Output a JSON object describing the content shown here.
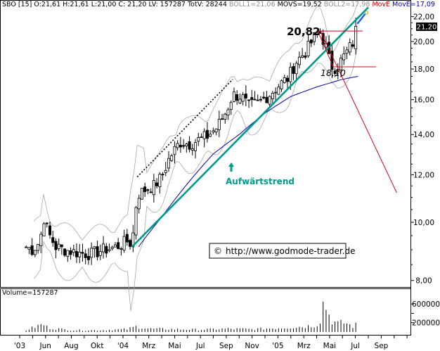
{
  "header": {
    "symbol": "SBO [15]",
    "ohlc": "O:21,61 H:21,61 L:21,00 C: 21,20 LV: 157287 TotV: 28244",
    "boll1": "BOLL1=21,06",
    "movs": "MOVS=19,52",
    "boll2": "BOLL2=17,98",
    "move1": "MovE",
    "move2": "MovE=17,09"
  },
  "annotations": {
    "high_label": "20,82",
    "low_label": "18,10",
    "trend_label": "Aufwärtstrend",
    "last_price": "21,20",
    "watermark": "http://www.godmode-trader.de",
    "copyright": "©"
  },
  "volume_label": "Volume=157287",
  "colors": {
    "trend": "#009a8c",
    "ma_blue": "#0000aa",
    "boll_grey": "#a8a8a8",
    "red_lines": "#e0001e",
    "arrow_blue": "#1a5cff",
    "header_red": "#d40000",
    "header_blue": "#0000cc",
    "header_grey": "#909090"
  },
  "chart_data": {
    "type": "candlestick",
    "title": "SBO [15]",
    "price_axis": {
      "ticks": [
        8,
        10,
        12,
        14,
        16,
        18,
        20,
        22
      ],
      "tick_labels": [
        "8,00",
        "10,00",
        "12,00",
        "14,00",
        "16,00",
        "18,00",
        "20,00",
        "22,00"
      ],
      "scale": "log"
    },
    "volume_axis": {
      "ticks": [
        200000,
        400000,
        600000
      ],
      "tick_labels": [
        "200000",
        "400000",
        "600000"
      ]
    },
    "x_labels": [
      "'03",
      "Jun",
      "Aug",
      "Okt",
      "'04",
      "Mrz",
      "Mai",
      "Jul",
      "Sep",
      "Nov",
      "'05",
      "Mrz",
      "Mai",
      "Jul",
      "Sep"
    ],
    "x_label_months": [
      0,
      2,
      4,
      6,
      8,
      10,
      12,
      14,
      16,
      18,
      20,
      22,
      24,
      26,
      28
    ],
    "close_keypoints": [
      [
        0.5,
        9.1
      ],
      [
        1.0,
        9.0
      ],
      [
        1.6,
        9.3
      ],
      [
        1.8,
        10.3
      ],
      [
        2.2,
        9.6
      ],
      [
        2.8,
        9.1
      ],
      [
        3.5,
        9.0
      ],
      [
        4.5,
        8.9
      ],
      [
        5.5,
        8.85
      ],
      [
        6.5,
        9.0
      ],
      [
        7.5,
        9.1
      ],
      [
        8.3,
        9.3
      ],
      [
        8.7,
        9.2
      ],
      [
        9.1,
        11.1
      ],
      [
        9.6,
        11.3
      ],
      [
        10.4,
        11.5
      ],
      [
        11.0,
        11.9
      ],
      [
        11.6,
        12.8
      ],
      [
        12.4,
        13.6
      ],
      [
        13.2,
        13.5
      ],
      [
        13.8,
        13.7
      ],
      [
        14.5,
        13.9
      ],
      [
        15.3,
        14.4
      ],
      [
        16.0,
        15.3
      ],
      [
        16.5,
        16.3
      ],
      [
        17.2,
        16.2
      ],
      [
        17.7,
        15.6
      ],
      [
        18.5,
        15.8
      ],
      [
        19.3,
        16.3
      ],
      [
        20.2,
        17.0
      ],
      [
        20.8,
        17.4
      ],
      [
        21.4,
        18.5
      ],
      [
        22.2,
        19.3
      ],
      [
        22.8,
        20.3
      ],
      [
        23.2,
        20.82
      ],
      [
        23.7,
        19.7
      ],
      [
        24.1,
        18.2
      ],
      [
        24.5,
        18.1
      ],
      [
        24.9,
        18.6
      ],
      [
        25.4,
        19.3
      ],
      [
        25.8,
        19.9
      ],
      [
        26.1,
        21.2
      ]
    ],
    "volume_keypoints": [
      [
        0.5,
        40000
      ],
      [
        1.8,
        170000
      ],
      [
        2.2,
        90000
      ],
      [
        4,
        40000
      ],
      [
        6,
        40000
      ],
      [
        8.3,
        60000
      ],
      [
        9.1,
        120000
      ],
      [
        10,
        70000
      ],
      [
        12,
        60000
      ],
      [
        14,
        50000
      ],
      [
        16,
        70000
      ],
      [
        18,
        60000
      ],
      [
        20.2,
        90000
      ],
      [
        21.5,
        110000
      ],
      [
        22.5,
        130000
      ],
      [
        23.2,
        180000
      ],
      [
        23.6,
        650000
      ],
      [
        24.1,
        260000
      ],
      [
        24.6,
        180000
      ],
      [
        25.2,
        200000
      ],
      [
        25.8,
        120000
      ],
      [
        26.1,
        157287
      ]
    ],
    "moving_average_keypoints": [
      [
        9.2,
        9.1
      ],
      [
        11,
        10.2
      ],
      [
        13,
        11.6
      ],
      [
        15,
        13.0
      ],
      [
        17,
        14.0
      ],
      [
        19,
        15.2
      ],
      [
        21,
        16.2
      ],
      [
        23,
        16.8
      ],
      [
        25,
        17.3
      ],
      [
        26.2,
        17.5
      ]
    ],
    "trend_channel": {
      "lower_line": [
        [
          8.7,
          9.1
        ],
        [
          27.0,
          22.8
        ]
      ],
      "upper_line": [
        [
          9.1,
          11.9
        ],
        [
          16.5,
          17.3
        ]
      ]
    },
    "red_lines": {
      "high_level": 20.82,
      "low_level": 18.1,
      "high_from_month": 23.2,
      "low_from_month": 24.5,
      "projection": [
        [
          23.3,
          20.8
        ],
        [
          29.2,
          11.2
        ]
      ]
    }
  }
}
